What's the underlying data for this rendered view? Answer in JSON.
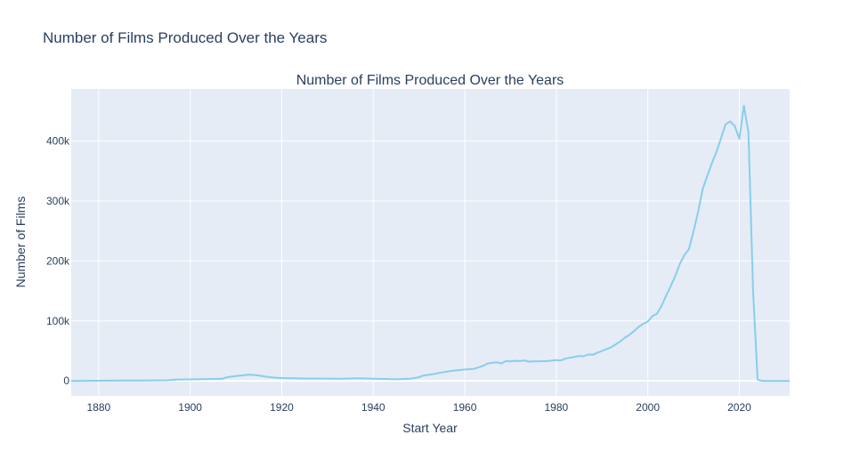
{
  "page": {
    "title": "Number of Films Produced Over the Years"
  },
  "chart_data": {
    "type": "line",
    "title": "Number of Films Produced Over the Years",
    "xlabel": "Start Year",
    "ylabel": "Number of Films",
    "xlim": [
      1874,
      2031
    ],
    "ylim": [
      -25000,
      487000
    ],
    "x_ticks": [
      1880,
      1900,
      1920,
      1940,
      1960,
      1980,
      2000,
      2020
    ],
    "y_ticks": [
      0,
      100000,
      200000,
      300000,
      400000
    ],
    "y_tick_labels": [
      "0",
      "100k",
      "200k",
      "300k",
      "400k"
    ],
    "grid": true,
    "legend": "none",
    "colors": {
      "line": "#87ceeb",
      "plot_bg": "#e5ecf6",
      "grid": "#ffffff",
      "text": "#2a3f5f"
    },
    "series": [
      {
        "x": [
          1874,
          1880,
          1885,
          1890,
          1895,
          1897,
          1900,
          1903,
          1907,
          1908,
          1910,
          1913,
          1915,
          1917,
          1919,
          1921,
          1925,
          1930,
          1933,
          1937,
          1940,
          1945,
          1948,
          1950,
          1951,
          1953,
          1955,
          1957,
          1960,
          1962,
          1964,
          1965,
          1967,
          1968,
          1969,
          1970,
          1971,
          1972,
          1973,
          1974,
          1975,
          1978,
          1980,
          1981,
          1982,
          1984,
          1985,
          1986,
          1987,
          1988,
          1989,
          1990,
          1991,
          1992,
          1993,
          1994,
          1995,
          1996,
          1997,
          1998,
          1999,
          2000,
          2001,
          2002,
          2003,
          2004,
          2005,
          2006,
          2007,
          2008,
          2009,
          2010,
          2011,
          2012,
          2013,
          2014,
          2015,
          2016,
          2017,
          2018,
          2019,
          2020,
          2021,
          2022,
          2023,
          2024,
          2025,
          2026,
          2031
        ],
        "y": [
          0,
          300,
          500,
          700,
          900,
          2000,
          2500,
          2800,
          3500,
          6000,
          8000,
          10500,
          9000,
          6500,
          5000,
          4500,
          4000,
          3800,
          3500,
          4200,
          3500,
          2600,
          3500,
          6000,
          9000,
          11000,
          14000,
          16500,
          19000,
          20000,
          25000,
          29000,
          31000,
          29000,
          33000,
          32500,
          33500,
          33000,
          34000,
          32000,
          32500,
          33000,
          34500,
          34000,
          37000,
          40000,
          41500,
          41000,
          44000,
          43500,
          47000,
          50000,
          53000,
          56000,
          61000,
          66000,
          72000,
          77000,
          83000,
          90000,
          95000,
          99000,
          108000,
          112000,
          125000,
          142000,
          158000,
          175000,
          195000,
          210000,
          220000,
          250000,
          282000,
          320000,
          342000,
          363000,
          382000,
          405000,
          428000,
          433000,
          425000,
          404000,
          459000,
          415000,
          150000,
          2000,
          0,
          0,
          0
        ]
      }
    ]
  }
}
